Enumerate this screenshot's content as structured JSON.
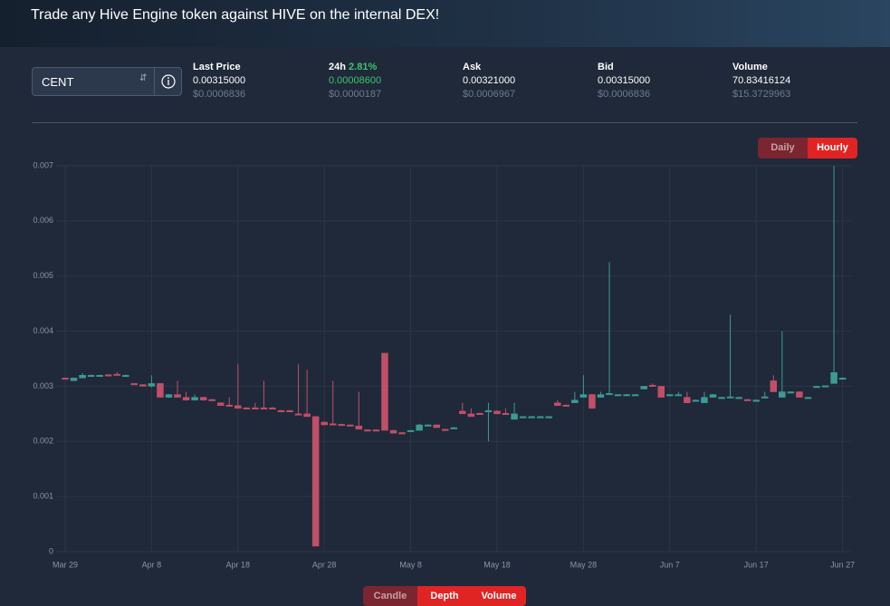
{
  "header": {
    "title": "Trade any Hive Engine token against HIVE on the internal DEX!"
  },
  "market": {
    "token": "CENT",
    "stats": [
      {
        "label": "Last Price",
        "value": "0.00315000",
        "usd": "$0.0006836"
      },
      {
        "label": "24h",
        "change": "2.81%",
        "value": "0.00008600",
        "usd": "$0.0000187"
      },
      {
        "label": "Ask",
        "value": "0.00321000",
        "usd": "$0.0006967"
      },
      {
        "label": "Bid",
        "value": "0.00315000",
        "usd": "$0.0006836"
      },
      {
        "label": "Volume",
        "value": "70.83416124",
        "usd": "$15.3729963"
      }
    ]
  },
  "timeframe": {
    "buttons": [
      "Daily",
      "Hourly"
    ],
    "active": 0
  },
  "views": {
    "buttons": [
      "Candle",
      "Depth",
      "Volume"
    ],
    "active": 0
  },
  "chart_data": {
    "type": "candlestick",
    "up_color": "#3c9b93",
    "down_color": "#c24f68",
    "grid": true,
    "ylim": [
      0,
      0.007
    ],
    "yticks": [
      0,
      0.001,
      0.002,
      0.003,
      0.004,
      0.005,
      0.006,
      0.007
    ],
    "categories": [
      "Mar 29",
      null,
      null,
      null,
      null,
      null,
      null,
      null,
      null,
      null,
      "Apr 8",
      null,
      null,
      null,
      null,
      null,
      null,
      null,
      null,
      null,
      "Apr 18",
      null,
      null,
      null,
      null,
      null,
      null,
      null,
      null,
      null,
      "Apr 28",
      null,
      null,
      null,
      null,
      null,
      null,
      null,
      null,
      null,
      "May 8",
      null,
      null,
      null,
      null,
      null,
      null,
      null,
      null,
      null,
      "May 18",
      null,
      null,
      null,
      null,
      null,
      null,
      null,
      null,
      null,
      "May 28",
      null,
      null,
      null,
      null,
      null,
      null,
      null,
      null,
      null,
      "Jun 7",
      null,
      null,
      null,
      null,
      null,
      null,
      null,
      null,
      null,
      "Jun 17",
      null,
      null,
      null,
      null,
      null,
      null,
      null,
      null,
      null,
      "Jun 27"
    ],
    "open": [
      0.00315,
      0.0031,
      0.00315,
      0.0032,
      0.0032,
      0.00321,
      0.00322,
      0.0032,
      0.00305,
      0.00303,
      0.003,
      0.00305,
      0.0028,
      0.00285,
      0.0028,
      0.00275,
      0.0028,
      0.00276,
      0.0027,
      0.00266,
      0.00265,
      0.00261,
      0.00261,
      0.00261,
      0.00261,
      0.00256,
      0.00256,
      0.0025,
      0.0025,
      0.00245,
      0.00235,
      0.00232,
      0.00231,
      0.0023,
      0.00228,
      0.00221,
      0.00221,
      0.0036,
      0.0022,
      0.00216,
      0.00218,
      0.0022,
      0.0023,
      0.0023,
      0.00222,
      0.00225,
      0.00255,
      0.0025,
      0.00251,
      0.00255,
      0.00255,
      0.00251,
      0.0024,
      0.00245,
      0.00245,
      0.00245,
      0.00245,
      0.0027,
      0.00266,
      0.0027,
      0.0028,
      0.00285,
      0.0028,
      0.00285,
      0.00285,
      0.00285,
      0.00285,
      0.00295,
      0.00302,
      0.003,
      0.00285,
      0.00285,
      0.0028,
      0.00275,
      0.0027,
      0.0028,
      0.0028,
      0.0028,
      0.0028,
      0.00276,
      0.00275,
      0.0028,
      0.0031,
      0.0028,
      0.0029,
      0.0029,
      0.0028,
      0.003,
      0.003,
      0.00305,
      0.00315
    ],
    "high": [
      0.00316,
      0.00316,
      0.00324,
      0.00321,
      0.00321,
      0.00322,
      0.00326,
      0.00321,
      0.00306,
      0.00304,
      0.0032,
      0.00306,
      0.00286,
      0.0031,
      0.0029,
      0.00285,
      0.00281,
      0.00277,
      0.00271,
      0.0028,
      0.0034,
      0.00262,
      0.0027,
      0.0031,
      0.00262,
      0.00257,
      0.00257,
      0.0034,
      0.0033,
      0.00246,
      0.00236,
      0.0031,
      0.00232,
      0.00231,
      0.0029,
      0.00222,
      0.00222,
      0.0036,
      0.00221,
      0.00217,
      0.0022,
      0.00232,
      0.00231,
      0.00231,
      0.00223,
      0.00226,
      0.0027,
      0.0026,
      0.00252,
      0.0027,
      0.00256,
      0.0026,
      0.0027,
      0.00246,
      0.00246,
      0.00246,
      0.00246,
      0.00275,
      0.00267,
      0.0029,
      0.0032,
      0.00286,
      0.0029,
      0.00525,
      0.00286,
      0.00286,
      0.00286,
      0.003,
      0.00305,
      0.003,
      0.00286,
      0.0029,
      0.0029,
      0.00276,
      0.0029,
      0.00286,
      0.00281,
      0.0043,
      0.00281,
      0.00277,
      0.00276,
      0.0029,
      0.0032,
      0.004,
      0.00291,
      0.00291,
      0.00281,
      0.00301,
      0.00301,
      0.007,
      0.00316
    ],
    "low": [
      0.00313,
      0.0031,
      0.00315,
      0.00319,
      0.00319,
      0.0032,
      0.0032,
      0.00319,
      0.00303,
      0.003,
      0.00298,
      0.0028,
      0.00279,
      0.0028,
      0.00274,
      0.00274,
      0.00274,
      0.00274,
      0.00265,
      0.00264,
      0.0026,
      0.0026,
      0.0026,
      0.0026,
      0.0026,
      0.00255,
      0.00255,
      0.00248,
      0.00245,
      0.0001,
      0.0023,
      0.0023,
      0.0023,
      0.00228,
      0.00222,
      0.0022,
      0.0022,
      0.0022,
      0.00215,
      0.00215,
      0.00217,
      0.0022,
      0.00229,
      0.00225,
      0.00219,
      0.00224,
      0.0025,
      0.00245,
      0.0025,
      0.002,
      0.0025,
      0.0025,
      0.0024,
      0.00244,
      0.00244,
      0.00244,
      0.00244,
      0.00265,
      0.00265,
      0.0027,
      0.0028,
      0.0026,
      0.0028,
      0.00285,
      0.00284,
      0.00284,
      0.00284,
      0.00295,
      0.003,
      0.0028,
      0.00284,
      0.00284,
      0.0027,
      0.00274,
      0.0027,
      0.0028,
      0.00279,
      0.0028,
      0.00279,
      0.00275,
      0.00274,
      0.0028,
      0.0029,
      0.0028,
      0.00289,
      0.0028,
      0.00279,
      0.00299,
      0.00299,
      0.00305,
      0.00314
    ],
    "close": [
      0.00314,
      0.00315,
      0.0032,
      0.0032,
      0.0032,
      0.0032,
      0.0032,
      0.0032,
      0.00303,
      0.003,
      0.00305,
      0.0028,
      0.00285,
      0.0028,
      0.00275,
      0.0028,
      0.00275,
      0.00275,
      0.00265,
      0.00265,
      0.0026,
      0.0026,
      0.0026,
      0.0026,
      0.0026,
      0.00255,
      0.00255,
      0.00248,
      0.00245,
      0.0001,
      0.0023,
      0.0023,
      0.0023,
      0.00228,
      0.00222,
      0.0022,
      0.0022,
      0.0022,
      0.00215,
      0.00215,
      0.0022,
      0.0023,
      0.0023,
      0.00225,
      0.0022,
      0.00225,
      0.0025,
      0.00245,
      0.0025,
      0.00256,
      0.0025,
      0.0025,
      0.0025,
      0.00245,
      0.00245,
      0.00245,
      0.00245,
      0.00265,
      0.00265,
      0.00275,
      0.00285,
      0.0026,
      0.00285,
      0.00287,
      0.00285,
      0.00285,
      0.00285,
      0.003,
      0.003,
      0.0028,
      0.00285,
      0.00285,
      0.0027,
      0.00275,
      0.0028,
      0.00285,
      0.0028,
      0.00281,
      0.0028,
      0.00275,
      0.00275,
      0.00281,
      0.0029,
      0.0029,
      0.0029,
      0.0028,
      0.0028,
      0.003,
      0.00301,
      0.00325,
      0.00315
    ]
  }
}
